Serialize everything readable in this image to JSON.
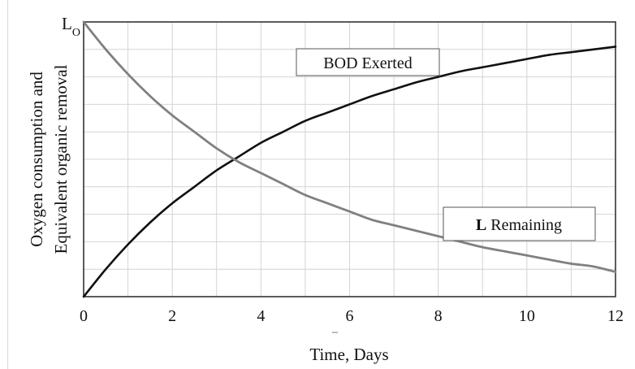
{
  "chart_data": {
    "type": "line",
    "x_ticks": [
      0,
      2,
      4,
      6,
      8,
      10,
      12
    ],
    "xlim": [
      0,
      12
    ],
    "ylim": [
      0,
      1
    ],
    "y_top_label": {
      "main": "L",
      "sub": "O"
    },
    "xlabel": "Time, Days",
    "ylabel_lines": [
      "Oxygen consumption and",
      "Equivalent organic removal"
    ],
    "grid": true,
    "series": [
      {
        "color": "#111111",
        "x": [
          0,
          0.5,
          1,
          1.5,
          2,
          2.5,
          3,
          3.5,
          4,
          4.5,
          5,
          5.5,
          6,
          6.5,
          7,
          7.5,
          8,
          8.5,
          9,
          9.5,
          10,
          10.5,
          11,
          11.5,
          12
        ],
        "y": [
          0.0,
          0.1,
          0.19,
          0.27,
          0.34,
          0.4,
          0.46,
          0.51,
          0.56,
          0.6,
          0.64,
          0.67,
          0.7,
          0.73,
          0.755,
          0.78,
          0.8,
          0.82,
          0.835,
          0.85,
          0.865,
          0.88,
          0.89,
          0.9,
          0.91
        ]
      },
      {
        "color": "#808080",
        "x": [
          0,
          0.5,
          1,
          1.5,
          2,
          2.5,
          3,
          3.5,
          4,
          4.5,
          5,
          5.5,
          6,
          6.5,
          7,
          7.5,
          8,
          8.5,
          9,
          9.5,
          10,
          10.5,
          11,
          11.5,
          12
        ],
        "y": [
          1.0,
          0.9,
          0.81,
          0.73,
          0.66,
          0.6,
          0.54,
          0.49,
          0.45,
          0.41,
          0.37,
          0.34,
          0.31,
          0.28,
          0.26,
          0.24,
          0.22,
          0.2,
          0.18,
          0.165,
          0.15,
          0.135,
          0.12,
          0.11,
          0.09
        ]
      }
    ],
    "annotations": [
      {
        "text": "BOD Exerted"
      },
      {
        "bold_part": "L",
        "text": " Remaining"
      }
    ]
  }
}
